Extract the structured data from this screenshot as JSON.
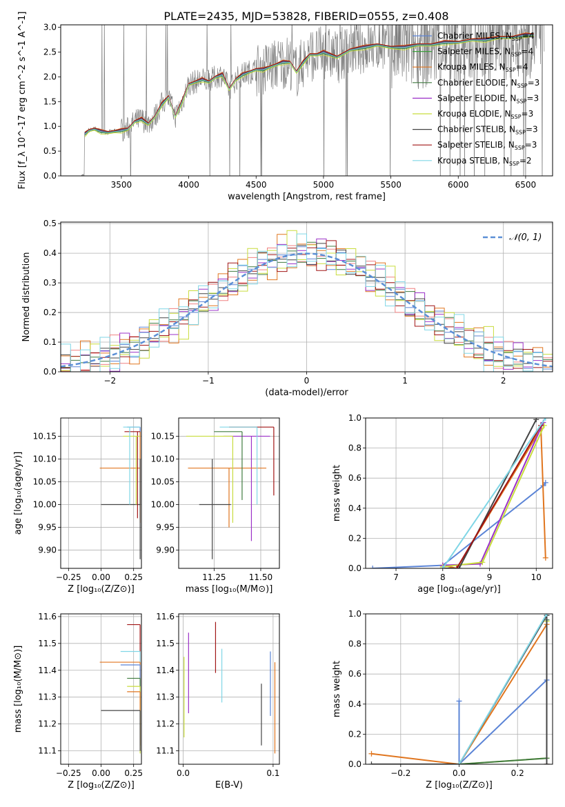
{
  "figure": {
    "title": "PLATE=2435, MJD=53828, FIBERID=0555, z=0.408"
  },
  "colors": {
    "Chabrier MILES": "#5b84d6",
    "Salpeter MILES": "#3a9e3a",
    "Kroupa MILES": "#e0751e",
    "Chabrier ELODIE": "#3f7a3f",
    "Salpeter ELODIE": "#9b30c8",
    "Kroupa ELODIE": "#c8dc3c",
    "Chabrier STELIB": "#444444",
    "Salpeter STELIB": "#a01414",
    "Kroupa STELIB": "#7fd6e6",
    "data": "#808080",
    "gaussian": "#5b8fd6"
  },
  "chart_data": [
    {
      "id": "spectrum",
      "type": "line",
      "xlabel": "wavelength [Angstrom, rest frame]",
      "ylabel": "Flux [f_λ 10^-17 erg cm^-2 s^-1 A^-1]",
      "xlim": [
        3050,
        6700
      ],
      "ylim": [
        0,
        3.05
      ],
      "xticks": [
        3500,
        4000,
        4500,
        5000,
        5500,
        6000,
        6500
      ],
      "yticks": [
        0.0,
        0.5,
        1.0,
        1.5,
        2.0,
        2.5,
        3.0
      ],
      "grid": false,
      "legend_position": "top-right",
      "model_x": [
        3230,
        3260,
        3300,
        3350,
        3400,
        3450,
        3500,
        3550,
        3600,
        3650,
        3700,
        3750,
        3800,
        3850,
        3900,
        3950,
        4000,
        4050,
        4100,
        4150,
        4200,
        4250,
        4300,
        4350,
        4400,
        4450,
        4500,
        4550,
        4600,
        4650,
        4700,
        4750,
        4800,
        4850,
        4900,
        4950,
        5000,
        5100,
        5200,
        5300,
        5400,
        5500,
        5600,
        5700,
        5800,
        5900,
        6000,
        6100,
        6200,
        6300,
        6400,
        6500,
        6560
      ],
      "model_y": [
        0.85,
        0.92,
        0.95,
        0.9,
        0.88,
        0.9,
        0.92,
        0.95,
        1.1,
        1.15,
        1.05,
        1.2,
        1.45,
        1.6,
        1.2,
        1.5,
        1.85,
        1.9,
        1.95,
        1.9,
        2.0,
        2.05,
        1.75,
        1.95,
        2.05,
        2.1,
        2.15,
        2.15,
        2.2,
        2.25,
        2.3,
        2.3,
        2.1,
        2.3,
        2.45,
        2.45,
        2.5,
        2.4,
        2.55,
        2.6,
        2.65,
        2.6,
        2.6,
        2.65,
        2.65,
        2.7,
        2.7,
        2.75,
        2.75,
        2.8,
        2.8,
        2.85,
        2.85
      ],
      "series": [
        {
          "name": "Chabrier MILES, N_SSP=4",
          "label": "Chabrier MILES, N",
          "sub": "SSP",
          "suffix": "=4",
          "offset": 0.02
        },
        {
          "name": "Salpeter MILES, N_SSP=4",
          "label": "Salpeter MILES, N",
          "sub": "SSP",
          "suffix": "=4",
          "offset": -0.02
        },
        {
          "name": "Kroupa MILES, N_SSP=4",
          "label": "Kroupa MILES, N",
          "sub": "SSP",
          "suffix": "=4",
          "offset": 0.04
        },
        {
          "name": "Chabrier ELODIE, N_SSP=3",
          "label": "Chabrier ELODIE, N",
          "sub": "SSP",
          "suffix": "=3",
          "offset": -0.03
        },
        {
          "name": "Salpeter ELODIE, N_SSP=3",
          "label": "Salpeter ELODIE, N",
          "sub": "SSP",
          "suffix": "=3",
          "offset": 0.0
        },
        {
          "name": "Kroupa ELODIE, N_SSP=3",
          "label": "Kroupa ELODIE, N",
          "sub": "SSP",
          "suffix": "=3",
          "offset": -0.06
        },
        {
          "name": "Chabrier STELIB, N_SSP=3",
          "label": "Chabrier STELIB, N",
          "sub": "SSP",
          "suffix": "=3",
          "offset": 0.01
        },
        {
          "name": "Salpeter STELIB, N_SSP=3",
          "label": "Salpeter STELIB, N",
          "sub": "SSP",
          "suffix": "=3",
          "offset": 0.03
        },
        {
          "name": "Kroupa STELIB, N_SSP=2",
          "label": "Kroupa STELIB, N",
          "sub": "SSP",
          "suffix": "=2",
          "offset": -0.01
        }
      ]
    },
    {
      "id": "residuals",
      "type": "histogram",
      "xlabel": "(data-model)/error",
      "ylabel": "Normed distribution",
      "xlim": [
        -2.5,
        2.5
      ],
      "ylim": [
        0,
        0.505
      ],
      "xticks": [
        -2,
        -1,
        0,
        1,
        2
      ],
      "yticks": [
        0.0,
        0.1,
        0.2,
        0.3,
        0.4,
        0.5
      ],
      "grid": true,
      "legend": "N(0, 1)",
      "legend_position": "top-right",
      "bin_width": 0.1,
      "bin_start": -2.5,
      "base_density": [
        0.02,
        0.022,
        0.025,
        0.03,
        0.035,
        0.04,
        0.05,
        0.055,
        0.06,
        0.07,
        0.08,
        0.09,
        0.1,
        0.11,
        0.12,
        0.135,
        0.15,
        0.165,
        0.18,
        0.2,
        0.22,
        0.24,
        0.26,
        0.28,
        0.3,
        0.32,
        0.33,
        0.35,
        0.36,
        0.37,
        0.38,
        0.385,
        0.39,
        0.395,
        0.4,
        0.41,
        0.42,
        0.415,
        0.4,
        0.39,
        0.38,
        0.37,
        0.36,
        0.35,
        0.34,
        0.32,
        0.3,
        0.285,
        0.27,
        0.25
      ],
      "wiggle": [
        0.01,
        -0.012,
        0.015,
        -0.02,
        0.025,
        -0.01,
        0.018,
        -0.025,
        0.03,
        -0.015
      ]
    },
    {
      "id": "age-vs-Z",
      "type": "errorbar",
      "xlabel": "Z [log10(Z/Z⊙)]",
      "ylabel": "age [log10(age/yr)]",
      "xlim": [
        -0.31,
        0.31
      ],
      "ylim": [
        9.86,
        10.19
      ],
      "xticks": [
        -0.25,
        0.0,
        0.25
      ],
      "xticklabels": [
        "−0.25",
        "0.00",
        "0.25"
      ],
      "yticks": [
        9.9,
        9.95,
        10.0,
        10.05,
        10.1,
        10.15
      ],
      "grid": true,
      "points": [
        {
          "c": "Chabrier MILES",
          "x": 0.3,
          "y": 10.17,
          "xerr": [
            0.1,
            0.0
          ],
          "yerr": [
            0.17,
            0.0
          ]
        },
        {
          "c": "Kroupa MILES",
          "x": 0.3,
          "y": 10.08,
          "xerr": [
            0.31,
            0.0
          ],
          "yerr": [
            0.12,
            0.08
          ]
        },
        {
          "c": "Chabrier STELIB",
          "x": 0.3,
          "y": 10.0,
          "xerr": [
            0.3,
            0.0
          ],
          "yerr": [
            0.12,
            0.1
          ]
        },
        {
          "c": "Salpeter STELIB",
          "x": 0.28,
          "y": 10.16,
          "xerr": [
            0.1,
            0.02
          ],
          "yerr": [
            0.19,
            0.0
          ]
        },
        {
          "c": "Kroupa ELODIE",
          "x": 0.27,
          "y": 10.15,
          "xerr": [
            0.1,
            0.03
          ],
          "yerr": [
            0.15,
            0.0
          ]
        },
        {
          "c": "Kroupa STELIB",
          "x": 0.22,
          "y": 10.17,
          "xerr": [
            0.05,
            0.08
          ],
          "yerr": [
            0.17,
            0.0
          ]
        }
      ]
    },
    {
      "id": "age-vs-mass",
      "type": "errorbar",
      "xlabel": "mass [log10(M/M⊙)]",
      "ylabel": "",
      "xlim": [
        11.06,
        11.6
      ],
      "ylim": [
        9.86,
        10.19
      ],
      "xticks": [
        11.25,
        11.5
      ],
      "yticks": [
        9.9,
        9.95,
        10.0,
        10.05,
        10.1,
        10.15
      ],
      "grid": true,
      "points": [
        {
          "c": "Salpeter STELIB",
          "x": 11.57,
          "y": 10.17,
          "xerr": [
            0.24,
            0.0
          ],
          "yerr": [
            0.15,
            0.0
          ]
        },
        {
          "c": "Salpeter ELODIE",
          "x": 11.45,
          "y": 10.15,
          "xerr": [
            0.15,
            0.1
          ],
          "yerr": [
            0.23,
            0.0
          ]
        },
        {
          "c": "Kroupa MILES",
          "x": 11.33,
          "y": 10.08,
          "xerr": [
            0.22,
            0.2
          ],
          "yerr": [
            0.13,
            0.0
          ]
        },
        {
          "c": "Chabrier STELIB",
          "x": 11.24,
          "y": 10.0,
          "xerr": [
            0.07,
            0.1
          ],
          "yerr": [
            0.12,
            0.1
          ]
        },
        {
          "c": "Kroupa ELODIE",
          "x": 11.35,
          "y": 10.15,
          "xerr": [
            0.25,
            0.0
          ],
          "yerr": [
            0.19,
            0.0
          ]
        },
        {
          "c": "Chabrier ELODIE",
          "x": 11.4,
          "y": 10.16,
          "xerr": [
            0.15,
            0.0
          ],
          "yerr": [
            0.15,
            0.0
          ]
        },
        {
          "c": "Kroupa STELIB",
          "x": 11.48,
          "y": 10.17,
          "xerr": [
            0.2,
            0.0
          ],
          "yerr": [
            0.17,
            0.0
          ]
        }
      ]
    },
    {
      "id": "weight-vs-age",
      "type": "line",
      "xlabel": "age [log10(age/yr)]",
      "ylabel": "mass weight",
      "xlim": [
        6.35,
        10.35
      ],
      "ylim": [
        0,
        1.0
      ],
      "xticks": [
        7,
        8,
        9,
        10
      ],
      "yticks": [
        0.0,
        0.2,
        0.4,
        0.6,
        0.8,
        1.0
      ],
      "grid": true,
      "series": [
        {
          "c": "Chabrier MILES",
          "x": [
            6.5,
            8.0,
            10.15,
            10.2
          ],
          "y": [
            0.0,
            0.02,
            0.55,
            0.57
          ]
        },
        {
          "c": "Kroupa MILES",
          "x": [
            8.0,
            8.3,
            10.1,
            10.2
          ],
          "y": [
            0.02,
            0.0,
            0.93,
            0.07
          ]
        },
        {
          "c": "Salpeter ELODIE",
          "x": [
            8.0,
            8.8,
            10.15
          ],
          "y": [
            0.02,
            0.03,
            0.97
          ]
        },
        {
          "c": "Kroupa ELODIE",
          "x": [
            8.0,
            8.85,
            10.17
          ],
          "y": [
            0.01,
            0.04,
            0.95
          ]
        },
        {
          "c": "Chabrier STELIB",
          "x": [
            8.0,
            8.35,
            10.0
          ],
          "y": [
            0.0,
            0.0,
            0.99
          ]
        },
        {
          "c": "Salpeter STELIB",
          "x": [
            8.3,
            10.1
          ],
          "y": [
            0.0,
            0.95
          ]
        },
        {
          "c": "Kroupa STELIB",
          "x": [
            8.0,
            10.2
          ],
          "y": [
            0.0,
            1.0
          ]
        }
      ]
    },
    {
      "id": "mass-vs-Z",
      "type": "errorbar",
      "xlabel": "Z [log10(Z/Z⊙)]",
      "ylabel": "mass [log10(M/M⊙)]",
      "xlim": [
        -0.31,
        0.31
      ],
      "ylim": [
        11.05,
        11.61
      ],
      "xticks": [
        -0.25,
        0.0,
        0.25
      ],
      "xticklabels": [
        "−0.25",
        "0.00",
        "0.25"
      ],
      "yticks": [
        11.1,
        11.2,
        11.3,
        11.4,
        11.5,
        11.6
      ],
      "grid": true,
      "points": [
        {
          "c": "Salpeter STELIB",
          "x": 0.3,
          "y": 11.57,
          "xerr": [
            0.1,
            0.0
          ],
          "yerr": [
            0.3,
            0.0
          ]
        },
        {
          "c": "Kroupa STELIB",
          "x": 0.3,
          "y": 11.47,
          "xerr": [
            0.15,
            0.0
          ],
          "yerr": [
            0.2,
            0.0
          ]
        },
        {
          "c": "Kroupa MILES",
          "x": 0.3,
          "y": 11.43,
          "xerr": [
            0.31,
            0.0
          ],
          "yerr": [
            0.33,
            0.0
          ]
        },
        {
          "c": "Chabrier MILES",
          "x": 0.3,
          "y": 11.42,
          "xerr": [
            0.15,
            0.0
          ],
          "yerr": [
            0.2,
            0.0
          ]
        },
        {
          "c": "Chabrier ELODIE",
          "x": 0.3,
          "y": 11.37,
          "xerr": [
            0.1,
            0.0
          ],
          "yerr": [
            0.25,
            0.0
          ]
        },
        {
          "c": "Kroupa ELODIE",
          "x": 0.3,
          "y": 11.34,
          "xerr": [
            0.1,
            0.0
          ],
          "yerr": [
            0.25,
            0.0
          ]
        },
        {
          "c": "Kroupa MILES",
          "x": 0.3,
          "y": 11.32,
          "xerr": [
            0.1,
            0.0
          ],
          "yerr": [
            0.2,
            0.0
          ]
        },
        {
          "c": "Chabrier STELIB",
          "x": 0.3,
          "y": 11.25,
          "xerr": [
            0.3,
            0.0
          ],
          "yerr": [
            0.15,
            0.0
          ]
        }
      ]
    },
    {
      "id": "mass-vs-ebv",
      "type": "errorbar",
      "xlabel": "E(B-V)",
      "ylabel": "",
      "xlim": [
        -0.005,
        0.107
      ],
      "ylim": [
        11.05,
        11.61
      ],
      "xticks": [
        0.0,
        0.1
      ],
      "yticks": [
        11.1,
        11.2,
        11.3,
        11.4,
        11.5,
        11.6
      ],
      "grid": true,
      "points": [
        {
          "c": "Salpeter ELODIE",
          "x": 0.006,
          "y": 11.4,
          "xerr": [
            0.0,
            0.0
          ],
          "yerr": [
            0.16,
            0.14
          ]
        },
        {
          "c": "Kroupa ELODIE",
          "x": 0.001,
          "y": 11.3,
          "xerr": [
            0.0,
            0.0
          ],
          "yerr": [
            0.15,
            0.15
          ]
        },
        {
          "c": "Salpeter STELIB",
          "x": 0.036,
          "y": 11.48,
          "xerr": [
            0.0,
            0.0
          ],
          "yerr": [
            0.09,
            0.1
          ]
        },
        {
          "c": "Kroupa STELIB",
          "x": 0.043,
          "y": 11.38,
          "xerr": [
            0.0,
            0.0
          ],
          "yerr": [
            0.1,
            0.1
          ]
        },
        {
          "c": "Chabrier STELIB",
          "x": 0.087,
          "y": 11.23,
          "xerr": [
            0.0,
            0.0
          ],
          "yerr": [
            0.11,
            0.12
          ]
        },
        {
          "c": "Chabrier MILES",
          "x": 0.097,
          "y": 11.35,
          "xerr": [
            0.0,
            0.0
          ],
          "yerr": [
            0.12,
            0.12
          ]
        },
        {
          "c": "Kroupa MILES",
          "x": 0.102,
          "y": 11.25,
          "xerr": [
            0.0,
            0.0
          ],
          "yerr": [
            0.16,
            0.18
          ]
        }
      ]
    },
    {
      "id": "weight-vs-Z",
      "type": "line",
      "xlabel": "Z [log10(Z/Z⊙)]",
      "ylabel": "mass weight",
      "xlim": [
        -0.32,
        0.32
      ],
      "ylim": [
        0,
        1.0
      ],
      "xticks": [
        -0.2,
        0.0,
        0.2
      ],
      "xticklabels": [
        "−0.2",
        "0.0",
        "0.2"
      ],
      "yticks": [
        0.0,
        0.2,
        0.4,
        0.6,
        0.8,
        1.0
      ],
      "grid": true,
      "series": [
        {
          "c": "Chabrier MILES",
          "x": [
            0.0,
            0.0,
            0.3,
            0.3
          ],
          "y": [
            0.42,
            0.0,
            0.56,
            0.0
          ]
        },
        {
          "c": "Kroupa MILES",
          "x": [
            -0.3,
            0.0,
            0.3,
            0.3
          ],
          "y": [
            0.07,
            0.0,
            0.93,
            0.0
          ]
        },
        {
          "c": "Kroupa ELODIE",
          "x": [
            0.0,
            0.3,
            0.3
          ],
          "y": [
            0.0,
            0.04,
            0.95
          ]
        },
        {
          "c": "Chabrier ELODIE",
          "x": [
            0.0,
            0.3,
            0.3
          ],
          "y": [
            0.0,
            0.04,
            0.96
          ]
        },
        {
          "c": "Chabrier STELIB",
          "x": [
            -0.3,
            0.0,
            0.3,
            0.3
          ],
          "y": [
            0.0,
            0.0,
            0.99,
            0.0
          ]
        },
        {
          "c": "Kroupa STELIB",
          "x": [
            0.0,
            0.3
          ],
          "y": [
            0.0,
            1.0
          ]
        }
      ]
    }
  ]
}
